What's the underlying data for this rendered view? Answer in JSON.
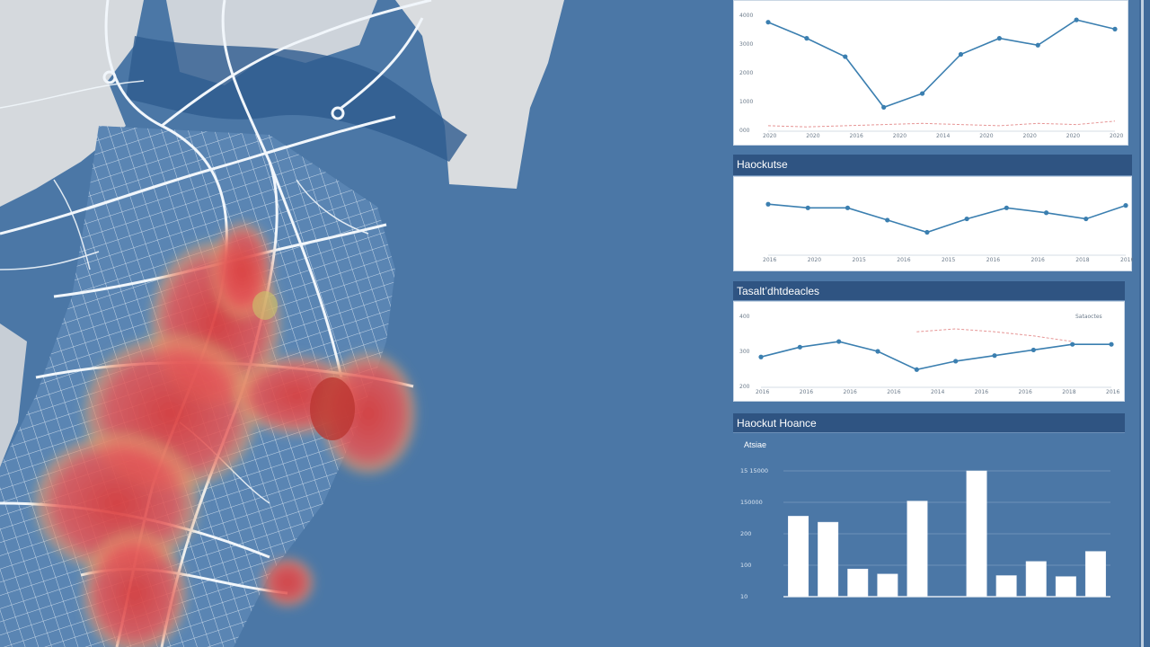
{
  "colors": {
    "background": "#4b77a6",
    "land": "#d9dcdf",
    "water": "#2f5d91",
    "road": "#eef4fb",
    "heat_core": "#e14c4c",
    "heat_edge": "#7fcf7a",
    "line": "#3b7fb0",
    "panel_header": "#2f5482"
  },
  "map": {
    "name": "heatmap-map"
  },
  "panels": {
    "p2_title": "Haockutse",
    "p3_title": "Tasalt’dhtdeacles",
    "p4_title": "Haockut Hoance",
    "p4_sub": "Atsiae"
  },
  "chart_data": [
    {
      "type": "line",
      "title": "",
      "ylim": [
        0,
        5
      ],
      "y_ticks": [
        "4000",
        "3000",
        "2000",
        "1000",
        "000"
      ],
      "x_ticks": [
        "2020",
        "2020",
        "2016",
        "2020",
        "2014",
        "2020",
        "2020",
        "2020",
        "2020"
      ],
      "series": [
        {
          "values": [
            4.7,
            4.0,
            3.2,
            1.0,
            1.6,
            3.3,
            4.0,
            3.7,
            4.8,
            4.4
          ],
          "color": "#3b7fb0"
        },
        {
          "values": [
            0.2,
            0.15,
            0.2,
            0.25,
            0.3,
            0.25,
            0.2,
            0.3,
            0.25,
            0.4
          ],
          "color": "#e07a7a"
        }
      ]
    },
    {
      "type": "line",
      "title": "Haockutse",
      "ylim": [
        0,
        5
      ],
      "y_ticks": [],
      "x_ticks": [
        "2016",
        "2020",
        "2015",
        "2016",
        "2015",
        "2016",
        "2016",
        "2018",
        "2016"
      ],
      "series": [
        {
          "values": [
            4.1,
            3.8,
            3.8,
            2.8,
            1.8,
            2.9,
            3.8,
            3.4,
            2.9,
            4.0
          ],
          "color": "#3b7fb0"
        }
      ]
    },
    {
      "type": "line",
      "title": "Tasalt’dhtdeacles",
      "ylim": [
        0,
        5
      ],
      "y_ticks": [
        "400",
        "300",
        "200"
      ],
      "x_ticks": [
        "2016",
        "2016",
        "2016",
        "2016",
        "2014",
        "2016",
        "2016",
        "2018",
        "2016"
      ],
      "legend": "Sataoctes",
      "series": [
        {
          "values": [
            2.1,
            2.8,
            3.2,
            2.5,
            1.2,
            1.8,
            2.2,
            2.6,
            3.0,
            3.0
          ],
          "color": "#3b7fb0"
        },
        {
          "values": [
            null,
            null,
            null,
            null,
            3.9,
            4.1,
            3.9,
            3.6,
            3.2,
            null
          ],
          "color": "#e07a7a"
        }
      ]
    },
    {
      "type": "bar",
      "title": "Haockut Hoance",
      "subtitle": "Atsiae",
      "ylim": [
        0,
        250
      ],
      "y_ticks": [
        "15 15000",
        "150000",
        "200",
        "100",
        "10"
      ],
      "values": [
        160,
        148,
        55,
        45,
        190,
        0,
        250,
        42,
        70,
        40,
        90
      ]
    }
  ]
}
